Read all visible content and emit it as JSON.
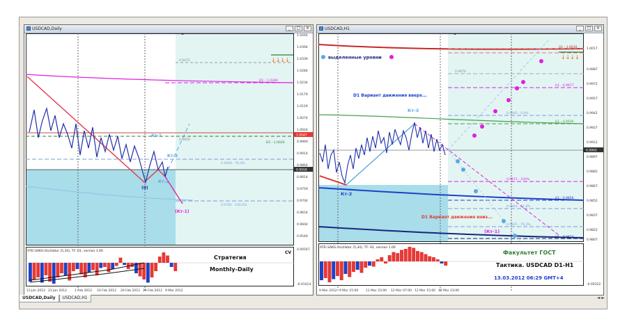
{
  "windows": [
    {
      "title": "USDCAD,Daily",
      "price_axis": [
        "1.0444",
        "1.0394",
        "1.0339",
        "1.0284",
        "1.0234",
        "1.0179",
        "1.0129",
        "1.0074",
        "1.0024",
        "0.9969",
        "0.9914",
        "0.9864",
        "0.9814",
        "0.9759",
        "0.9704",
        "0.9654",
        "0.9604",
        "0.9549"
      ],
      "price_markers": [
        {
          "label": "1.0047",
          "color": "#e53935"
        },
        {
          "label": "0.9918",
          "color": "#333333"
        }
      ],
      "level_labels": [
        "0.0472",
        "D1 - 1.0289",
        "0.9859",
        "0.9959 - 76.4%",
        "0.9792 - 100.0%",
        "D1 - 1.0026"
      ],
      "annotations": {
        "kt1": "Кт-1",
        "kt3": "Кт-3",
        "kt2": "Кт-2",
        "zero": "(0)",
        "ktm1": "(Кт-1)",
        "cv": "CV"
      },
      "strategy": {
        "line1": "Стратегия",
        "line2": "Monthly-Daily"
      },
      "osc": {
        "label": "ATEI.SAKS-Oscillator (5,34), TF: D1, version 1.00",
        "top": "0.00567",
        "bottom": "-0.01414"
      },
      "time_axis": [
        "13 Jan 2012",
        "23 Jan 2012",
        "1 Feb 2012",
        "10 Feb 2012",
        "20 Feb 2012",
        "29 Feb 2012",
        "9 Mar 2012"
      ],
      "osc_bars": [
        -0.9,
        -0.8,
        -0.7,
        -0.95,
        -0.6,
        -0.9,
        -1.0,
        -0.7,
        -0.5,
        -0.6,
        -0.85,
        -0.4,
        -0.3,
        -0.55,
        -0.7,
        -0.45,
        -0.35,
        -0.6,
        -0.25,
        -0.2,
        -0.45,
        -0.3,
        -0.15,
        0.25,
        -0.1,
        -0.3,
        -0.2,
        -0.5,
        -0.65,
        -0.8,
        -0.95,
        -0.7,
        -0.4,
        0.3,
        0.5,
        0.35,
        -0.2,
        -0.4
      ]
    },
    {
      "title": "USDCAD,H1",
      "price_axis": [
        "1.0017",
        "0.9987",
        "0.9972",
        "0.9957",
        "0.9942",
        "0.9927",
        "0.9912",
        "0.9897",
        "0.9882",
        "0.9867",
        "0.9852",
        "0.9837",
        "0.9822",
        "0.9807"
      ],
      "price_markers": [
        {
          "label": "0.9905",
          "color": "#333333"
        }
      ],
      "level_labels": [
        "H1 - 1.0016",
        "0.9970",
        "H1 - 0.9977",
        "0.9945 - 0.0%",
        "H1 - 0.9936",
        "0.9871 - 100%",
        "H1 - 0.9856",
        "0.9844 - 61.8%",
        "H1 - 0.9813",
        "0.9825 - 76.4%"
      ],
      "legend": "выделенные уровни",
      "annotations": {
        "d1_up": "D1 Вариант движения вверх...",
        "kt3": "Кт-3",
        "kt2": "Кт-2",
        "d1_down": "D1 Вариант движения вниз...",
        "ktm1": "(Кт-1)"
      },
      "osc": {
        "label": "ATEI.SAKS-Oscillator (5,34), TF: H1, version 1.00",
        "bottom": "-0.00322"
      },
      "faculty": "Факультет ГОСТ",
      "tactics": "Тактика. USDCAD D1-H1",
      "datetime": "13.03.2012 06:29 GMT+4",
      "time_axis": [
        "9 Mar 2012",
        "9 Mar 15:00",
        "11 Mar 23:00",
        "12 Mar 07:00",
        "12 Mar 15:00",
        "12 Mar 23:00"
      ],
      "osc_bars": [
        -0.9,
        -0.8,
        -1.0,
        -0.85,
        -0.7,
        -0.9,
        -0.6,
        -0.75,
        -0.5,
        -0.4,
        -0.55,
        -0.3,
        -0.2,
        -0.25,
        0.1,
        0.2,
        -0.1,
        0.3,
        0.45,
        0.4,
        0.55,
        0.6,
        0.7,
        0.65,
        0.5,
        0.45,
        0.35,
        0.25,
        0.2,
        0.1,
        -0.1,
        -0.2
      ]
    }
  ],
  "tabs": [
    "USDCAD,Daily",
    "USDCAD,H1"
  ],
  "tab_arrows": "◄ ►",
  "colors": {
    "tp_arrows": "#ff6600",
    "teal_zone": "#e2f5f3",
    "blue_zone": "#a8dde9",
    "candles": "#1f2fa8",
    "zigzag": "#e53950",
    "magenta": "#e01ee0"
  }
}
